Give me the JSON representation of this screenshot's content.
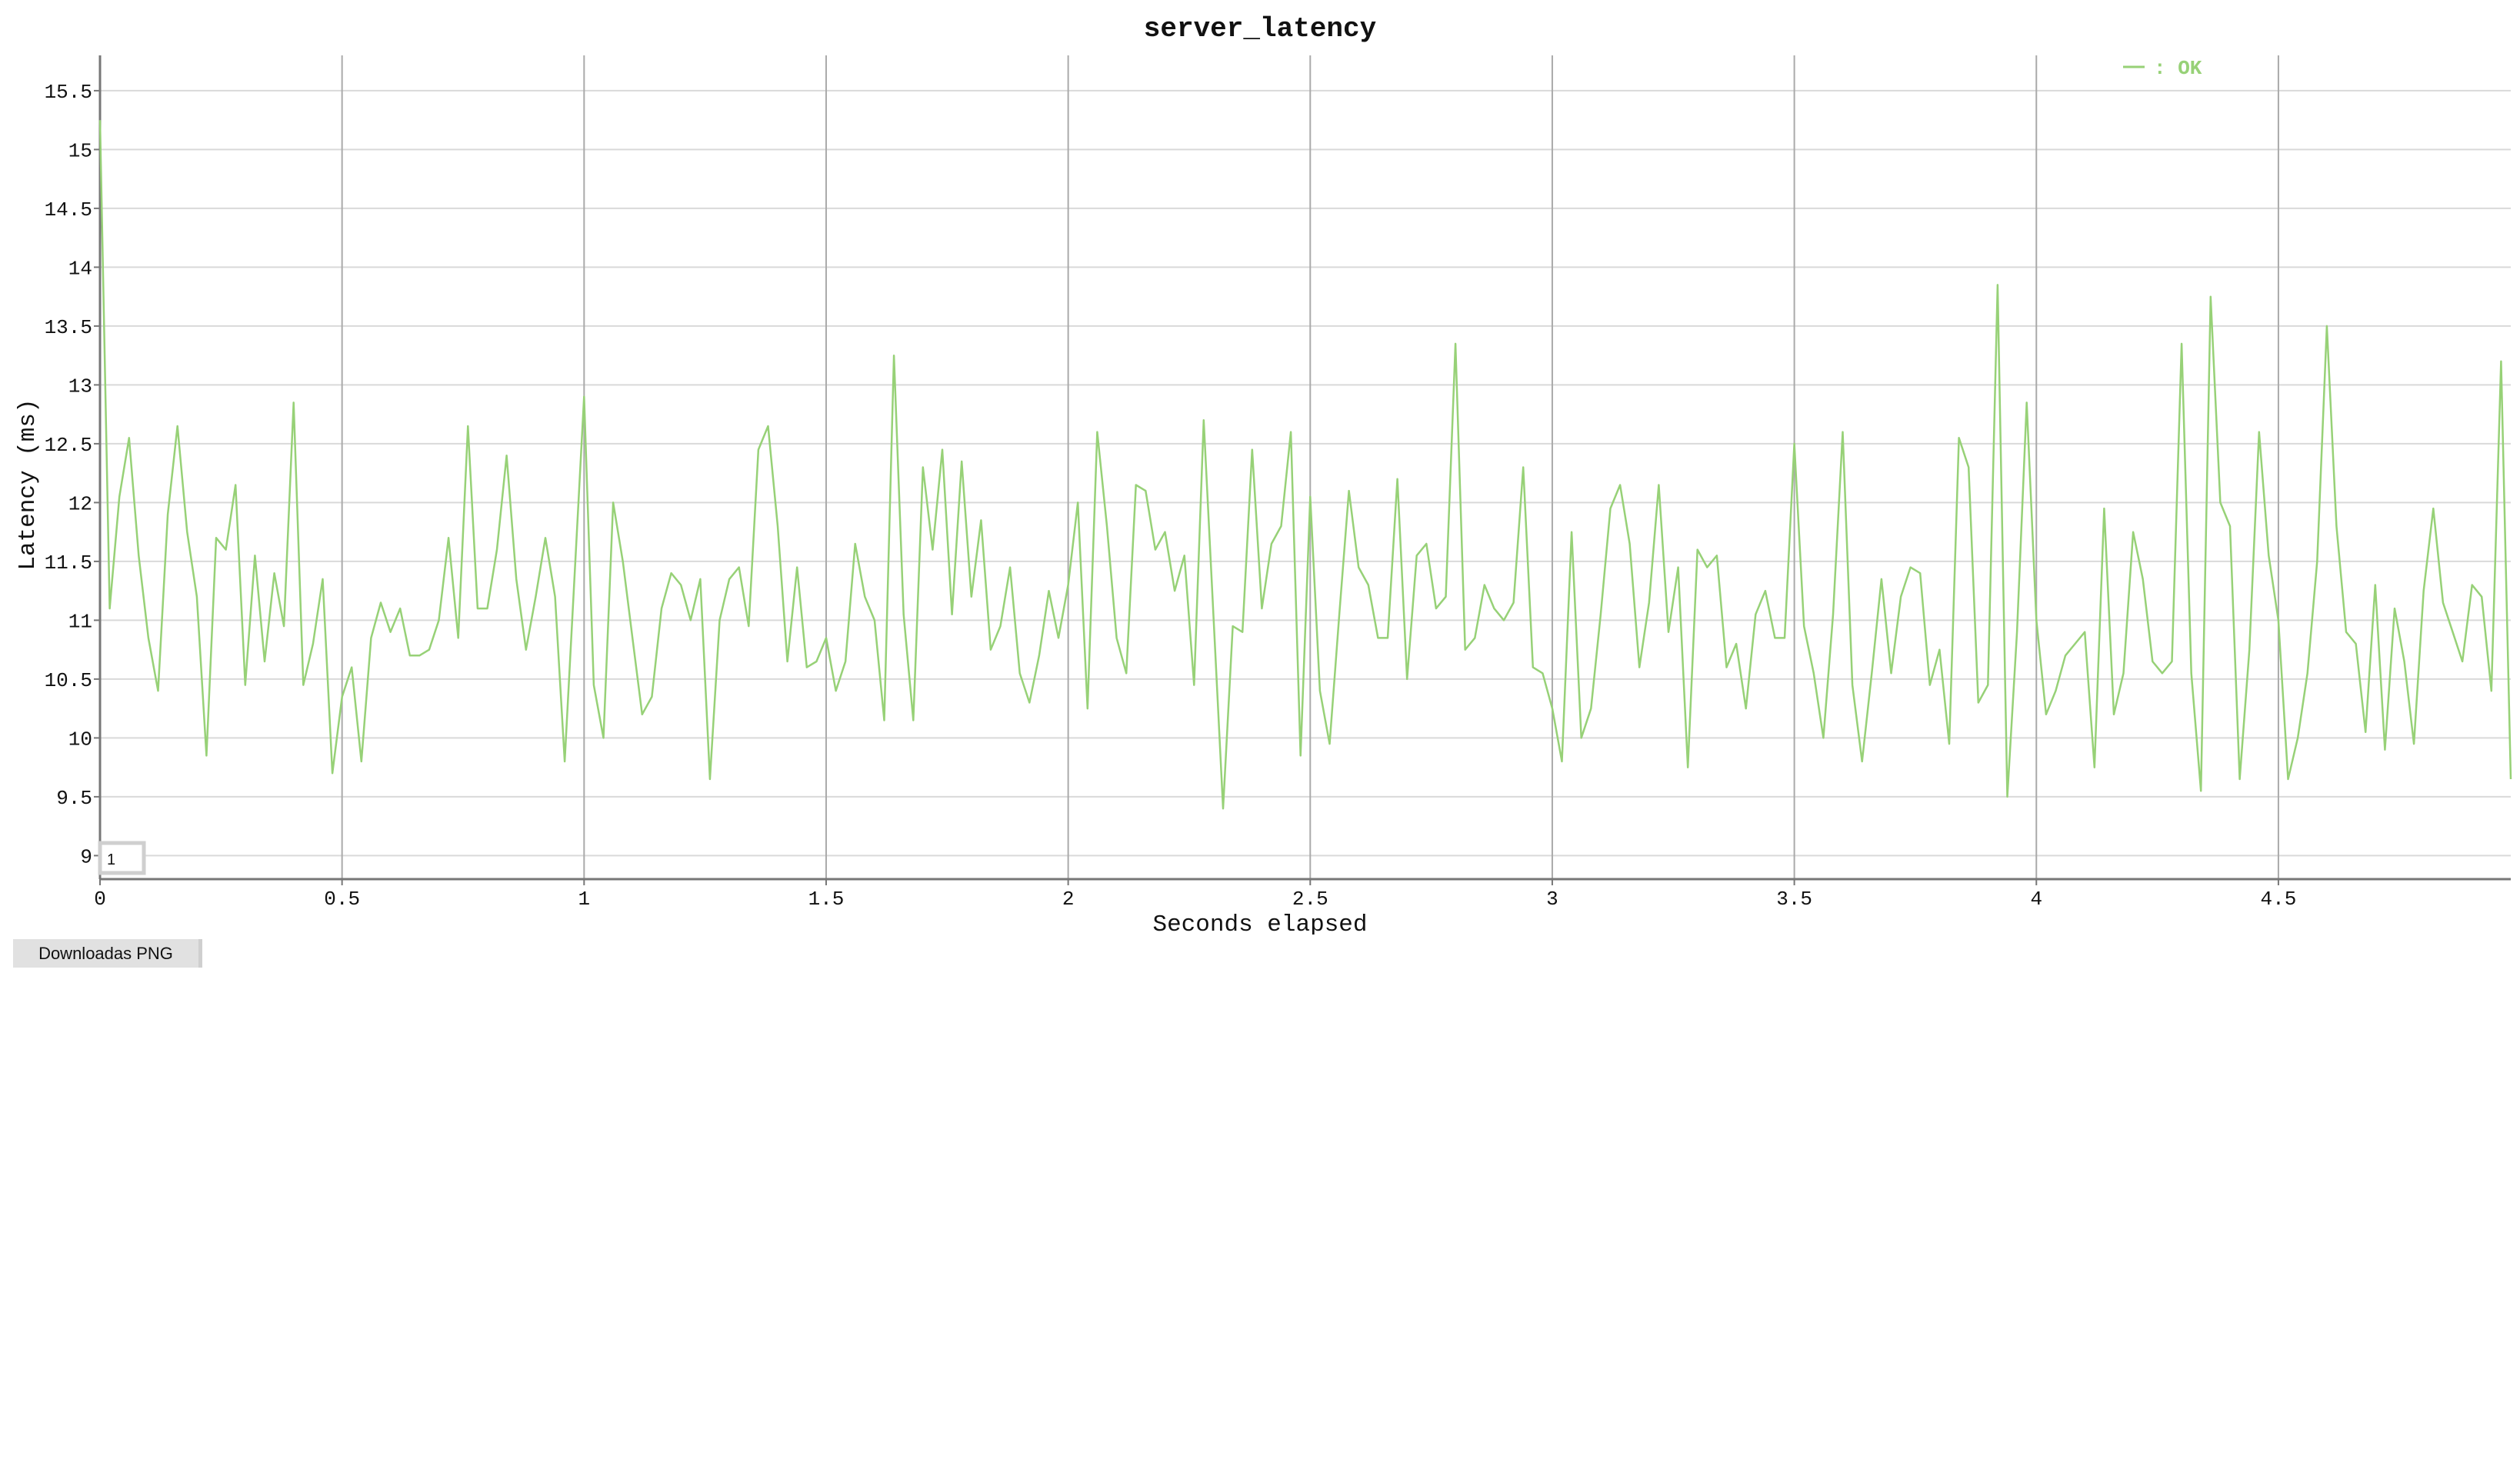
{
  "download_button_label": "Downloadas PNG",
  "zoom_box_label": "1",
  "chart_data": {
    "type": "line",
    "title": "server_latency",
    "xlabel": "Seconds elapsed",
    "ylabel": "Latency (ms)",
    "xlim": [
      0,
      4.98
    ],
    "ylim": [
      8.8,
      15.8
    ],
    "x_ticks": [
      "0",
      "0.5",
      "1",
      "1.5",
      "2",
      "2.5",
      "3",
      "3.5",
      "4",
      "4.5"
    ],
    "y_ticks": [
      "9",
      "9.5",
      "10",
      "10.5",
      "11",
      "11.5",
      "12",
      "12.5",
      "13",
      "13.5",
      "14",
      "14.5",
      "15",
      "15.5"
    ],
    "grid": true,
    "legend_position": "top-right",
    "series": [
      {
        "name": "OK",
        "color": "#97d177",
        "x_step": 0.02,
        "values": [
          15.25,
          11.1,
          12.05,
          12.55,
          11.55,
          10.85,
          10.4,
          11.9,
          12.65,
          11.75,
          11.2,
          9.85,
          11.7,
          11.6,
          12.15,
          10.45,
          11.55,
          10.65,
          11.4,
          10.95,
          12.85,
          10.45,
          10.8,
          11.35,
          9.7,
          10.35,
          10.6,
          9.8,
          10.85,
          11.15,
          10.9,
          11.1,
          10.7,
          10.7,
          10.75,
          11.0,
          11.7,
          10.85,
          12.65,
          11.1,
          11.1,
          11.6,
          12.4,
          11.35,
          10.75,
          11.2,
          11.7,
          11.2,
          9.8,
          11.35,
          12.9,
          10.45,
          10.0,
          12.0,
          11.5,
          10.85,
          10.2,
          10.35,
          11.1,
          11.4,
          11.3,
          11.0,
          11.35,
          9.65,
          11.0,
          11.35,
          11.45,
          10.95,
          12.45,
          12.65,
          11.8,
          10.65,
          11.45,
          10.6,
          10.65,
          10.85,
          10.4,
          10.65,
          11.65,
          11.2,
          11.0,
          10.15,
          13.25,
          11.05,
          10.15,
          12.3,
          11.6,
          12.45,
          11.05,
          12.35,
          11.2,
          11.85,
          10.75,
          10.95,
          11.45,
          10.55,
          10.3,
          10.7,
          11.25,
          10.85,
          11.3,
          12.0,
          10.25,
          12.6,
          11.8,
          10.85,
          10.55,
          12.15,
          12.1,
          11.6,
          11.75,
          11.25,
          11.55,
          10.45,
          12.7,
          11.05,
          9.4,
          10.95,
          10.9,
          12.45,
          11.1,
          11.65,
          11.8,
          12.6,
          9.85,
          12.05,
          10.4,
          9.95,
          11.05,
          12.1,
          11.45,
          11.3,
          10.85,
          10.85,
          12.2,
          10.5,
          11.55,
          11.65,
          11.1,
          11.2,
          13.35,
          10.75,
          10.85,
          11.3,
          11.1,
          11.0,
          11.15,
          12.3,
          10.6,
          10.55,
          10.25,
          9.8,
          11.75,
          10.0,
          10.25,
          11.05,
          11.95,
          12.15,
          11.65,
          10.6,
          11.15,
          12.15,
          10.9,
          11.45,
          9.75,
          11.6,
          11.45,
          11.55,
          10.6,
          10.8,
          10.25,
          11.05,
          11.25,
          10.85,
          10.85,
          12.5,
          10.95,
          10.55,
          10.0,
          11.05,
          12.6,
          10.45,
          9.8,
          10.55,
          11.35,
          10.55,
          11.2,
          11.45,
          11.4,
          10.45,
          10.75,
          9.95,
          12.55,
          12.3,
          10.3,
          10.45,
          13.85,
          9.5,
          10.9,
          12.85,
          11.0,
          10.2,
          10.4,
          10.7,
          10.8,
          10.9,
          9.75,
          11.95,
          10.2,
          10.55,
          11.75,
          11.35,
          10.65,
          10.55,
          10.65,
          13.35,
          10.55,
          9.55,
          13.75,
          12.0,
          11.8,
          9.65,
          10.75,
          12.6,
          11.55,
          11.0,
          9.65,
          10.0,
          10.55,
          11.5,
          13.5,
          11.8,
          10.9,
          10.8,
          10.05,
          11.3,
          9.9,
          11.1,
          10.65,
          9.95,
          11.25,
          11.95,
          11.15,
          10.9,
          10.65,
          11.3,
          11.2,
          10.4,
          13.2,
          9.65
        ]
      }
    ]
  }
}
